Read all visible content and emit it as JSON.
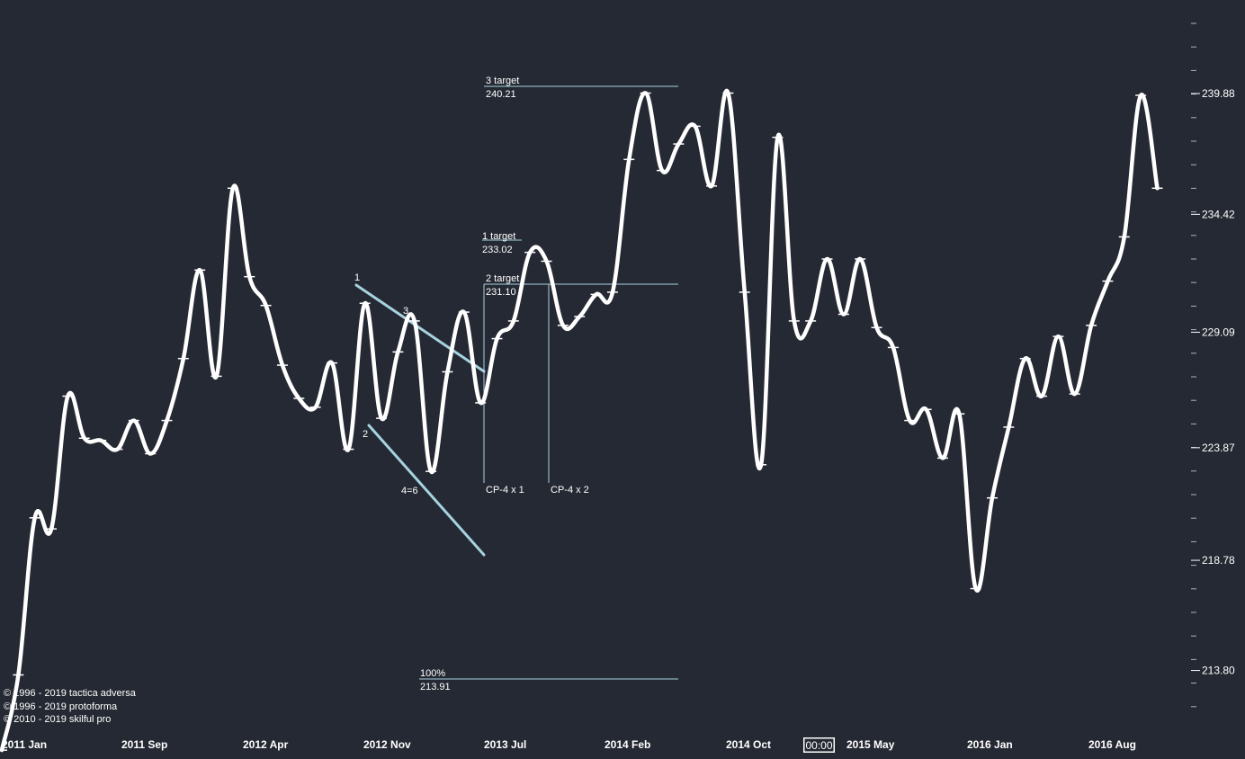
{
  "chart_data": {
    "type": "line",
    "y_axis": {
      "side": "right",
      "labels": [
        "239.88",
        "234.42",
        "229.09",
        "223.87",
        "218.78",
        "213.80"
      ]
    },
    "x_axis": {
      "labels": [
        "2011 Jan",
        "2011 Sep",
        "2012 Apr",
        "2012 Nov",
        "2013 Jul",
        "2014 Feb",
        "2014 Oct",
        "2015 May",
        "2016 Jan",
        "2016 Aug"
      ],
      "time_badge": "00:00"
    },
    "series": [
      {
        "values": [
          210.2,
          213.6,
          220.7,
          220.2,
          226.2,
          224.3,
          224.2,
          223.8,
          225.1,
          223.6,
          225.1,
          227.9,
          231.9,
          227.1,
          235.6,
          231.6,
          230.3,
          227.6,
          226.1,
          225.7,
          227.7,
          223.8,
          230.4,
          225.2,
          228.2,
          229.6,
          222.8,
          227.3,
          230.0,
          225.9,
          228.8,
          229.6,
          232.7,
          232.3,
          229.4,
          229.8,
          230.8,
          230.9,
          236.9,
          239.9,
          236.4,
          237.6,
          238.4,
          235.7,
          239.9,
          230.9,
          223.1,
          237.9,
          229.6,
          229.6,
          232.4,
          229.9,
          232.4,
          229.3,
          228.4,
          225.1,
          225.6,
          223.4,
          225.4,
          217.5,
          221.6,
          224.8,
          227.9,
          226.2,
          228.9,
          226.3,
          229.4,
          231.4,
          233.4,
          239.8,
          235.6
        ]
      }
    ],
    "annotations": {
      "pattern_points": [
        "1",
        "2",
        "3",
        "4=6"
      ],
      "targets": [
        {
          "label": "3 target",
          "value": "240.21"
        },
        {
          "label": "1 target",
          "value": "233.02"
        },
        {
          "label": "2 target",
          "value": "231.10"
        },
        {
          "label": "100%",
          "value": "213.91"
        }
      ],
      "cp_labels": [
        "CP-4 x 1",
        "CP-4 x 2"
      ]
    },
    "grid": false,
    "colors": {
      "background": "#252933",
      "line": "#ffffff",
      "trendline": "#a6d3df",
      "target_line": "#a6d3df",
      "text": "#ffffff",
      "tick": "#b0b3ba"
    }
  },
  "copyright": [
    "© 1996 - 2019 tactica adversa",
    "© 1996 - 2019 protoforma",
    "© 2010 - 2019 skilful pro"
  ]
}
